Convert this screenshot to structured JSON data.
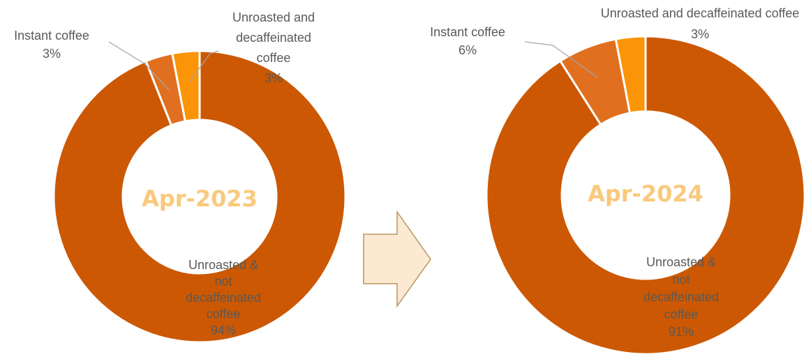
{
  "chart_data": [
    {
      "type": "pie",
      "title": "Apr-2023",
      "slices": [
        {
          "label_lines": [
            "Unroasted &",
            "not",
            "decaffeinated",
            "coffee"
          ],
          "pct_label": "94%",
          "value": 94,
          "color": "#cc5803"
        },
        {
          "label_lines": [
            "Instant coffee"
          ],
          "pct_label": "3%",
          "value": 3,
          "color": "#e0701f"
        },
        {
          "label_lines": [
            "Unroasted and",
            "decaffeinated",
            "coffee"
          ],
          "pct_label": "3%",
          "value": 3,
          "color": "#fb9406"
        }
      ]
    },
    {
      "type": "pie",
      "title": "Apr-2024",
      "slices": [
        {
          "label_lines": [
            "Unroasted &",
            "not",
            "decaffeinated",
            "coffee"
          ],
          "pct_label": "91%",
          "value": 91,
          "color": "#cc5803"
        },
        {
          "label_lines": [
            "Instant coffee"
          ],
          "pct_label": "6%",
          "value": 6,
          "color": "#e0701f"
        },
        {
          "label_lines": [
            "Unroasted and decaffeinated coffee"
          ],
          "pct_label": "3%",
          "value": 3,
          "color": "#fb9406"
        }
      ]
    }
  ],
  "arrow": {
    "fill": "#fce9d2",
    "stroke": "#b5975f"
  }
}
